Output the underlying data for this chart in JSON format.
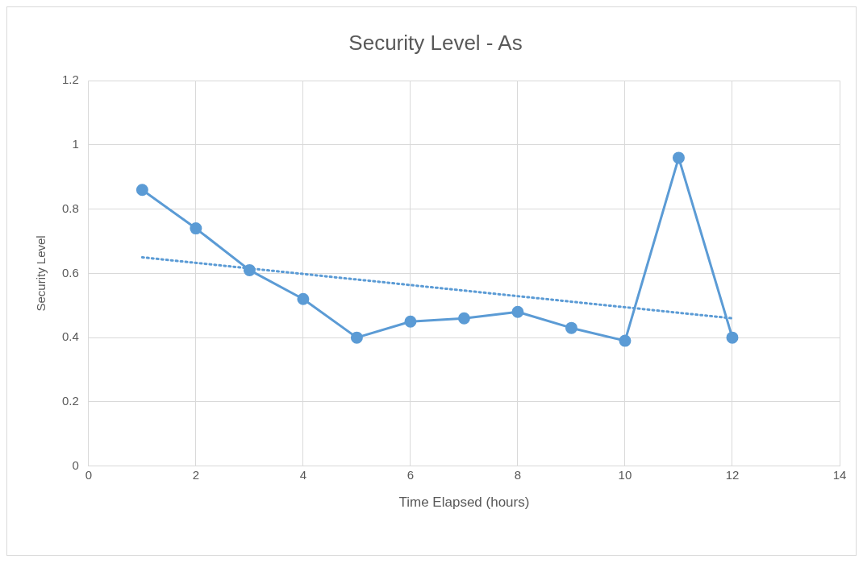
{
  "chart_data": {
    "type": "line",
    "title": "Security Level - As",
    "xlabel": "Time Elapsed (hours)",
    "ylabel": "Security Level",
    "x": [
      1,
      2,
      3,
      4,
      5,
      6,
      7,
      8,
      9,
      10,
      11,
      12
    ],
    "series": [
      {
        "color": "#5b9bd5",
        "values": [
          0.86,
          0.74,
          0.61,
          0.52,
          0.4,
          0.45,
          0.46,
          0.48,
          0.43,
          0.39,
          0.96,
          0.4
        ]
      },
      {
        "type": "line",
        "x": [
          1,
          12
        ],
        "color": "#5b9bd5",
        "values": [
          0.65,
          0.46
        ],
        "marker": "none",
        "line_style": "dotted"
      }
    ],
    "xlim": [
      0,
      14
    ],
    "xticks": [
      0,
      2,
      4,
      6,
      8,
      10,
      12,
      14
    ],
    "ylim": [
      0,
      1.2
    ],
    "yticks": [
      0,
      0.2,
      0.4,
      0.6,
      0.8,
      1,
      1.2
    ],
    "grid": true,
    "legend": false,
    "marker": "circle",
    "line_style": "solid"
  }
}
